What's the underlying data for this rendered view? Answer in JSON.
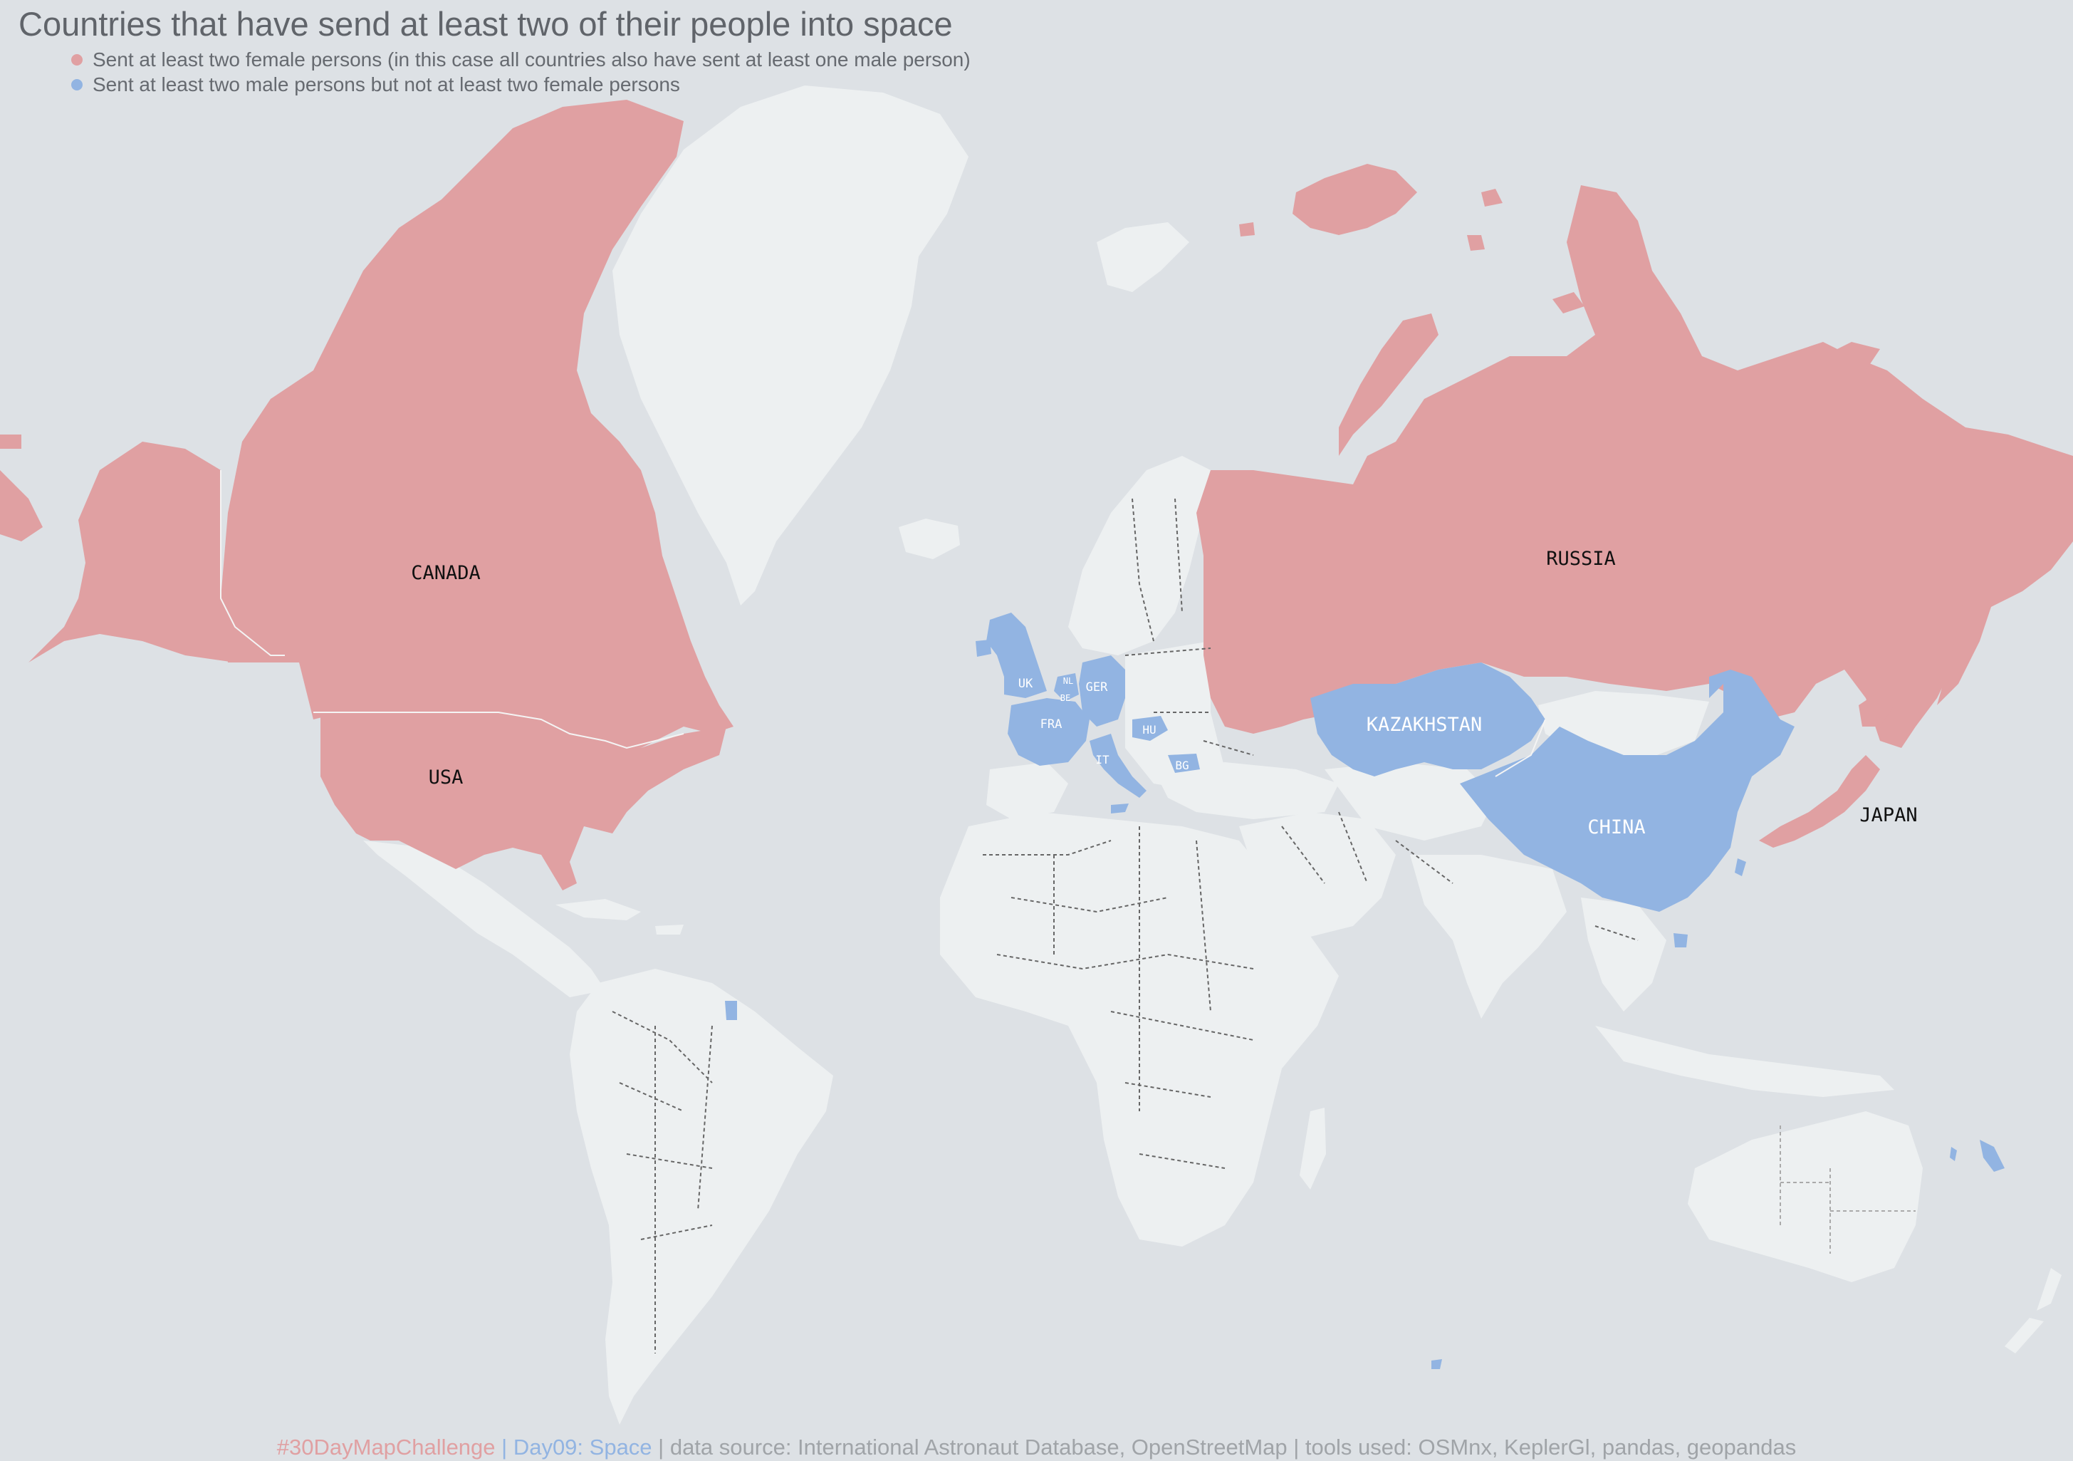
{
  "title": "Countries that have send at least two of their people into space",
  "legend": [
    {
      "label": "Sent at least two female persons (in this case all countries also have sent at least one male person)",
      "color": "#e0a0a2"
    },
    {
      "label": "Sent at least two male persons but not at least two female persons",
      "color": "#92b4e2"
    }
  ],
  "colors": {
    "background_ocean": "#dde1e5",
    "land": "#edf0f1",
    "female_category": "#e0a0a2",
    "male_category": "#92b4e2",
    "footer_text": "#a0a4a8"
  },
  "labels": {
    "canada": "CANADA",
    "usa": "USA",
    "russia": "RUSSIA",
    "kazakhstan": "KAZAKHSTAN",
    "china": "CHINA",
    "japan": "JAPAN",
    "uk": "UK",
    "nl": "NL",
    "be": "BE",
    "ger": "GER",
    "fra": "FRA",
    "hu": "HU",
    "it": "IT",
    "bg": "BG"
  },
  "footer": {
    "challenge": "#30DayMapChallenge",
    "sep1": " | ",
    "day": "Day09: Space",
    "rest": " | data source: International Astronaut Database, OpenStreetMap | tools used: OSMnx, KeplerGl, pandas, geopandas"
  }
}
